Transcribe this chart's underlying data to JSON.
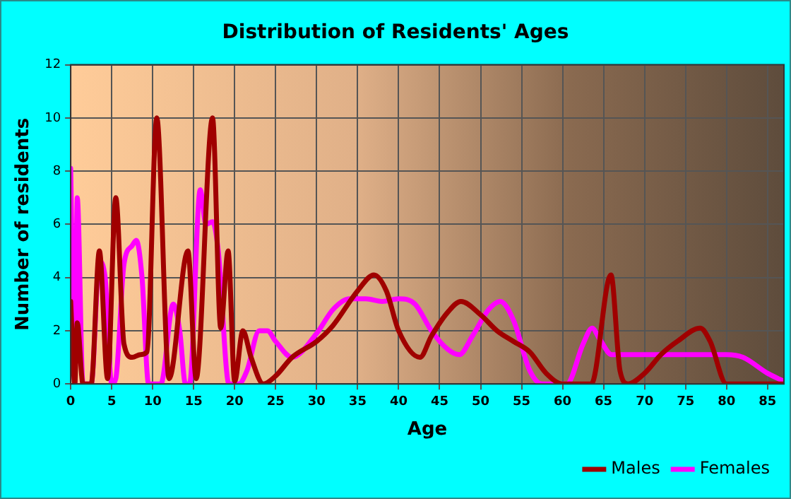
{
  "chart_data": {
    "type": "line",
    "title": "Distribution of Residents' Ages",
    "xlabel": "Age",
    "ylabel": "Number of residents",
    "xlim": [
      0,
      87
    ],
    "xticks": [
      0,
      5,
      10,
      15,
      20,
      25,
      30,
      35,
      40,
      45,
      50,
      55,
      60,
      65,
      70,
      75,
      80,
      85
    ],
    "ylim": [
      0,
      12
    ],
    "yticks": [
      0,
      2,
      4,
      6,
      8,
      10,
      12
    ],
    "grid": true,
    "legend": "bottom right",
    "marker": "none",
    "line_style": "solid",
    "series": [
      {
        "name": "Males",
        "color": "#a00000",
        "x": [
          0,
          0.5,
          0.8,
          1.5,
          2.5,
          3.5,
          4.5,
          5.5,
          6.5,
          7.5,
          8.5,
          9.3,
          10.5,
          12,
          14.3,
          15.3,
          17.3,
          18.3,
          19.2,
          20,
          21,
          22,
          23.5,
          25,
          27,
          30,
          32,
          35,
          37,
          38.5,
          40,
          42.6,
          44,
          46,
          47.6,
          50,
          52,
          54,
          56,
          58,
          60,
          62,
          63.5,
          65.9,
          67,
          68,
          70,
          72,
          74,
          76.8,
          78,
          80,
          82,
          86,
          87
        ],
        "values": [
          3.1,
          0,
          2.3,
          0,
          0,
          5,
          0.2,
          7,
          1.5,
          1,
          1.1,
          1.2,
          10,
          0.2,
          5,
          0.2,
          10,
          2.1,
          5,
          0.1,
          2,
          1,
          0,
          0.3,
          1,
          1.6,
          2.2,
          3.5,
          4.1,
          3.5,
          2,
          1,
          1.8,
          2.7,
          3.1,
          2.6,
          2,
          1.6,
          1.2,
          0.4,
          0,
          0,
          0,
          4.1,
          0.5,
          0,
          0.4,
          1.1,
          1.6,
          2.1,
          1.6,
          0,
          0,
          0,
          0
        ]
      },
      {
        "name": "Females",
        "color": "#ff00ff",
        "x": [
          0,
          0.5,
          0.8,
          1.5,
          2.5,
          3.5,
          4.2,
          5,
          5.5,
          6.5,
          7.5,
          8,
          8.7,
          9.5,
          11,
          12.5,
          13.3,
          14,
          14.5,
          15.8,
          16.5,
          17.3,
          18,
          19.3,
          20.5,
          21.5,
          23,
          24,
          25,
          27,
          30,
          32,
          34,
          36,
          38,
          40,
          42,
          44,
          46,
          47.4,
          49,
          51,
          52.4,
          54,
          56,
          57.5,
          60.5,
          62.5,
          63.6,
          64.5,
          66,
          70,
          80,
          82,
          85,
          87
        ],
        "values": [
          8.1,
          0,
          7,
          0,
          0,
          4.6,
          4,
          0,
          0.2,
          4.5,
          5.2,
          5.4,
          4,
          0,
          0,
          3,
          2,
          0,
          0,
          7.3,
          6,
          6.1,
          5,
          0,
          0,
          0.5,
          2,
          2,
          1.6,
          1,
          1.9,
          2.8,
          3.2,
          3.2,
          3.1,
          3.2,
          3,
          2,
          1.3,
          1.1,
          1.8,
          2.8,
          3.1,
          2.4,
          0.5,
          0,
          0,
          1.5,
          2.1,
          1.7,
          1.1,
          1.1,
          1.1,
          1,
          0.4,
          0.1
        ]
      }
    ]
  }
}
